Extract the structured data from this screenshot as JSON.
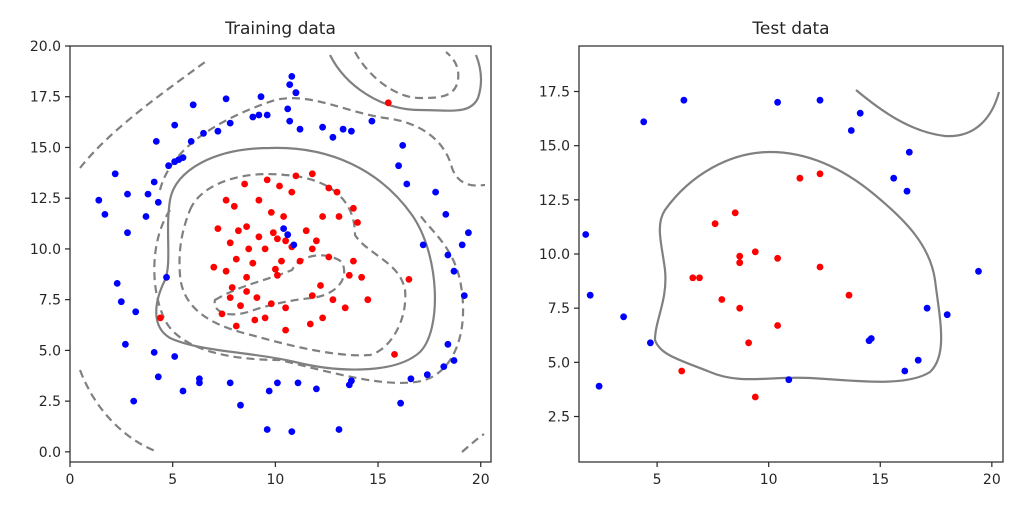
{
  "chart_data": [
    {
      "type": "scatter",
      "title": "Training data",
      "xlim": [
        0,
        20.5
      ],
      "ylim": [
        -0.5,
        20
      ],
      "xticks": [
        0,
        5,
        10,
        15,
        20
      ],
      "yticks": [
        0.0,
        2.5,
        5.0,
        7.5,
        10.0,
        12.5,
        15.0,
        17.5,
        20.0
      ],
      "xtick_labels": [
        "0",
        "5",
        "10",
        "15",
        "20"
      ],
      "ytick_labels": [
        "0.0",
        "2.5",
        "5.0",
        "7.5",
        "10.0",
        "12.5",
        "15.0",
        "17.5",
        "20.0"
      ],
      "grid": false,
      "colors": {
        "class_a": "#0000ff",
        "class_b": "#ff0000",
        "contour": "#808080"
      },
      "series": [
        {
          "color": "#ff0000",
          "points": [
            [
              11.0,
              17.7
            ],
            [
              15.5,
              17.2
            ],
            [
              8.5,
              13.2
            ],
            [
              9.6,
              13.4
            ],
            [
              11.0,
              13.6
            ],
            [
              11.8,
              13.7
            ],
            [
              10.2,
              13.1
            ],
            [
              10.8,
              12.8
            ],
            [
              12.6,
              13.0
            ],
            [
              13.0,
              12.8
            ],
            [
              7.6,
              12.4
            ],
            [
              9.2,
              12.4
            ],
            [
              13.8,
              12.0
            ],
            [
              8.0,
              12.1
            ],
            [
              9.8,
              11.8
            ],
            [
              10.4,
              11.6
            ],
            [
              12.3,
              11.6
            ],
            [
              13.1,
              11.6
            ],
            [
              14.0,
              11.3
            ],
            [
              8.6,
              11.1
            ],
            [
              7.2,
              11.0
            ],
            [
              9.9,
              10.8
            ],
            [
              11.5,
              10.9
            ],
            [
              12.0,
              10.4
            ],
            [
              8.2,
              10.9
            ],
            [
              9.2,
              10.6
            ],
            [
              10.1,
              10.5
            ],
            [
              10.8,
              10.1
            ],
            [
              7.8,
              10.3
            ],
            [
              8.7,
              10.0
            ],
            [
              9.5,
              10.0
            ],
            [
              10.5,
              10.4
            ],
            [
              11.8,
              10.0
            ],
            [
              12.6,
              9.6
            ],
            [
              13.8,
              9.4
            ],
            [
              8.1,
              9.5
            ],
            [
              8.9,
              9.3
            ],
            [
              10.3,
              9.4
            ],
            [
              11.2,
              9.4
            ],
            [
              10.0,
              9.0
            ],
            [
              7.0,
              9.1
            ],
            [
              7.6,
              8.9
            ],
            [
              8.6,
              8.6
            ],
            [
              10.1,
              8.7
            ],
            [
              12.2,
              8.2
            ],
            [
              13.6,
              8.7
            ],
            [
              14.2,
              8.6
            ],
            [
              16.5,
              8.5
            ],
            [
              7.9,
              8.1
            ],
            [
              8.6,
              7.9
            ],
            [
              9.1,
              7.6
            ],
            [
              9.8,
              7.3
            ],
            [
              11.8,
              7.7
            ],
            [
              12.8,
              7.5
            ],
            [
              14.5,
              7.5
            ],
            [
              7.8,
              7.6
            ],
            [
              8.3,
              7.2
            ],
            [
              10.5,
              7.1
            ],
            [
              13.4,
              7.1
            ],
            [
              7.4,
              6.8
            ],
            [
              9.0,
              6.5
            ],
            [
              9.5,
              6.6
            ],
            [
              11.7,
              6.3
            ],
            [
              12.3,
              6.6
            ],
            [
              4.4,
              6.6
            ],
            [
              8.1,
              6.2
            ],
            [
              10.5,
              6.0
            ],
            [
              15.8,
              4.8
            ]
          ]
        },
        {
          "color": "#0000ff",
          "points": [
            [
              10.8,
              18.5
            ],
            [
              10.7,
              18.1
            ],
            [
              11.0,
              17.7
            ],
            [
              6.0,
              17.1
            ],
            [
              7.6,
              17.4
            ],
            [
              9.3,
              17.5
            ],
            [
              10.6,
              16.9
            ],
            [
              9.6,
              16.6
            ],
            [
              9.2,
              16.6
            ],
            [
              8.9,
              16.5
            ],
            [
              10.7,
              16.3
            ],
            [
              7.8,
              16.2
            ],
            [
              5.1,
              16.1
            ],
            [
              7.2,
              15.8
            ],
            [
              12.3,
              16.0
            ],
            [
              14.7,
              16.3
            ],
            [
              11.2,
              15.9
            ],
            [
              13.3,
              15.9
            ],
            [
              6.5,
              15.7
            ],
            [
              4.2,
              15.3
            ],
            [
              13.7,
              15.8
            ],
            [
              5.9,
              15.3
            ],
            [
              12.8,
              15.5
            ],
            [
              5.5,
              14.5
            ],
            [
              16.2,
              15.1
            ],
            [
              5.1,
              14.3
            ],
            [
              5.3,
              14.4
            ],
            [
              4.8,
              14.1
            ],
            [
              2.2,
              13.7
            ],
            [
              16.0,
              14.1
            ],
            [
              4.1,
              13.3
            ],
            [
              3.8,
              12.7
            ],
            [
              1.4,
              12.4
            ],
            [
              2.8,
              12.7
            ],
            [
              16.4,
              13.2
            ],
            [
              4.3,
              12.3
            ],
            [
              1.7,
              11.7
            ],
            [
              17.8,
              12.8
            ],
            [
              3.7,
              11.6
            ],
            [
              18.3,
              11.7
            ],
            [
              2.8,
              10.8
            ],
            [
              10.4,
              11.0
            ],
            [
              10.6,
              10.7
            ],
            [
              19.4,
              10.8
            ],
            [
              10.9,
              10.2
            ],
            [
              17.2,
              10.2
            ],
            [
              18.4,
              9.7
            ],
            [
              19.1,
              10.2
            ],
            [
              4.7,
              8.6
            ],
            [
              2.3,
              8.3
            ],
            [
              18.7,
              8.9
            ],
            [
              2.5,
              7.4
            ],
            [
              19.2,
              7.7
            ],
            [
              3.2,
              6.9
            ],
            [
              2.7,
              5.3
            ],
            [
              4.1,
              4.9
            ],
            [
              5.1,
              4.7
            ],
            [
              18.4,
              5.3
            ],
            [
              18.7,
              4.5
            ],
            [
              18.2,
              4.2
            ],
            [
              4.3,
              3.7
            ],
            [
              6.3,
              3.4
            ],
            [
              6.3,
              3.6
            ],
            [
              5.5,
              3.0
            ],
            [
              7.8,
              3.4
            ],
            [
              10.1,
              3.4
            ],
            [
              11.1,
              3.4
            ],
            [
              16.6,
              3.6
            ],
            [
              17.4,
              3.8
            ],
            [
              13.7,
              3.5
            ],
            [
              13.6,
              3.3
            ],
            [
              9.7,
              3.0
            ],
            [
              12.0,
              3.1
            ],
            [
              3.1,
              2.5
            ],
            [
              8.3,
              2.3
            ],
            [
              16.1,
              2.4
            ],
            [
              9.6,
              1.1
            ],
            [
              10.8,
              1.0
            ],
            [
              13.1,
              1.1
            ]
          ]
        }
      ]
    },
    {
      "type": "scatter",
      "title": "Test data",
      "xlim": [
        1.5,
        20.5
      ],
      "ylim": [
        0.4,
        19.6
      ],
      "xticks": [
        5,
        10,
        15,
        20
      ],
      "yticks": [
        2.5,
        5.0,
        7.5,
        10.0,
        12.5,
        15.0,
        17.5
      ],
      "xtick_labels": [
        "5",
        "10",
        "15",
        "20"
      ],
      "ytick_labels": [
        "2.5",
        "5.0",
        "7.5",
        "10.0",
        "12.5",
        "15.0",
        "17.5"
      ],
      "grid": false,
      "colors": {
        "class_a": "#0000ff",
        "class_b": "#ff0000",
        "contour": "#808080"
      },
      "series": [
        {
          "color": "#ff0000",
          "points": [
            [
              12.3,
              13.7
            ],
            [
              11.4,
              13.5
            ],
            [
              8.5,
              11.9
            ],
            [
              7.6,
              11.4
            ],
            [
              9.4,
              10.1
            ],
            [
              8.7,
              9.9
            ],
            [
              10.4,
              9.8
            ],
            [
              8.7,
              9.6
            ],
            [
              6.6,
              8.9
            ],
            [
              6.9,
              8.9
            ],
            [
              12.3,
              9.4
            ],
            [
              13.6,
              8.1
            ],
            [
              7.9,
              7.9
            ],
            [
              8.7,
              7.5
            ],
            [
              10.4,
              6.7
            ],
            [
              9.1,
              5.9
            ],
            [
              6.1,
              4.6
            ],
            [
              9.4,
              3.4
            ]
          ]
        },
        {
          "color": "#0000ff",
          "points": [
            [
              6.2,
              17.1
            ],
            [
              10.4,
              17.0
            ],
            [
              12.3,
              17.1
            ],
            [
              4.4,
              16.1
            ],
            [
              14.1,
              16.5
            ],
            [
              13.7,
              15.7
            ],
            [
              16.3,
              14.7
            ],
            [
              15.6,
              13.5
            ],
            [
              16.2,
              12.9
            ],
            [
              1.8,
              10.9
            ],
            [
              19.4,
              9.2
            ],
            [
              2.0,
              8.1
            ],
            [
              17.1,
              7.5
            ],
            [
              18.0,
              7.2
            ],
            [
              3.5,
              7.1
            ],
            [
              4.7,
              5.9
            ],
            [
              14.5,
              6.0
            ],
            [
              14.6,
              6.1
            ],
            [
              16.7,
              5.1
            ],
            [
              16.1,
              4.6
            ],
            [
              10.9,
              4.2
            ],
            [
              2.4,
              3.9
            ]
          ]
        }
      ]
    }
  ]
}
